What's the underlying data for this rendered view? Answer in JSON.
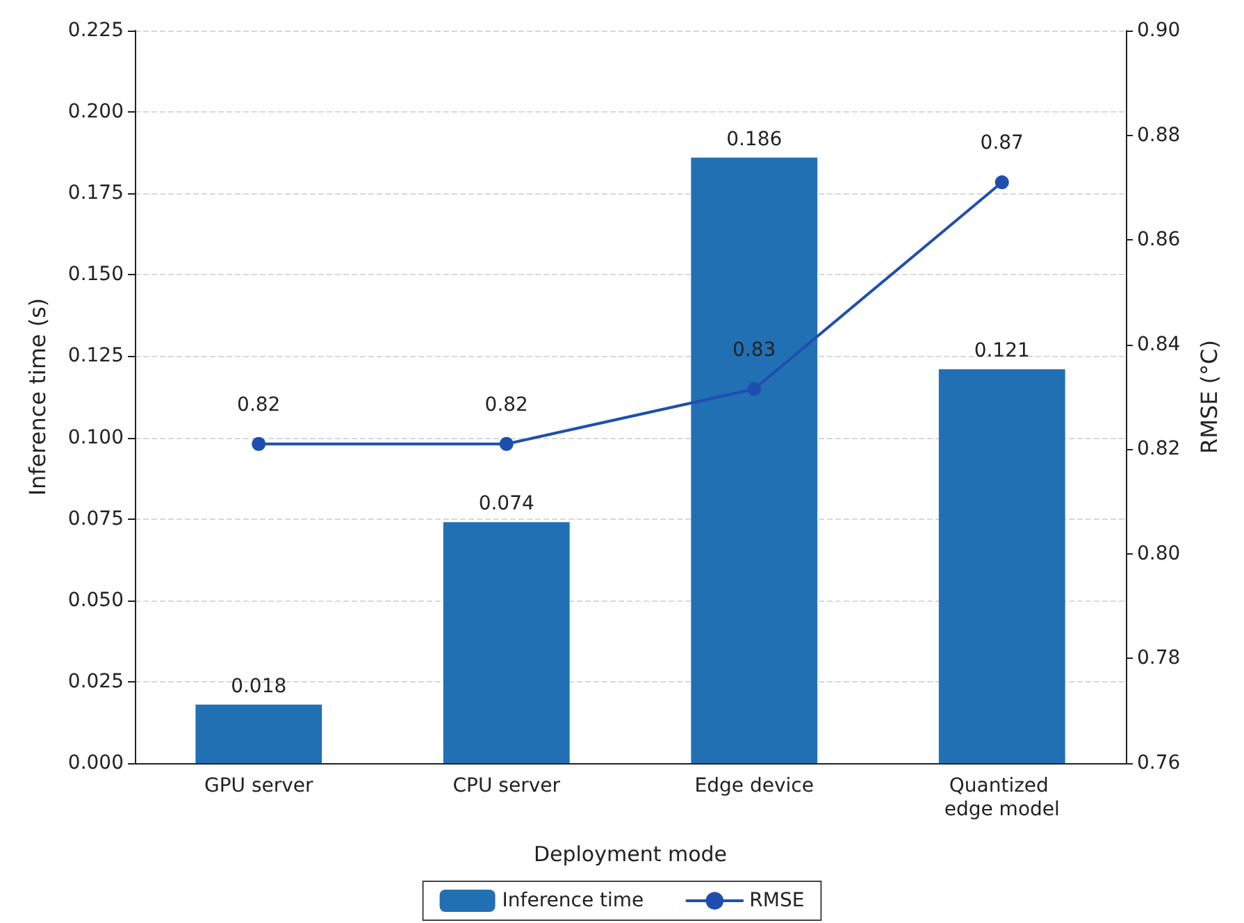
{
  "chart_data": {
    "type": "bar",
    "xlabel": "Deployment mode",
    "ylabel": "Inference time (s)",
    "y2label": "RMSE (°C)",
    "categories": [
      "GPU server",
      "CPU server",
      "Edge device",
      "Quantized edge model"
    ],
    "series": [
      {
        "name": "Inference time",
        "color": "#2270b4",
        "values": [
          0.018,
          0.074,
          0.186,
          0.121
        ],
        "data_labels": true
      },
      {
        "name": "RMSE",
        "type": "line",
        "axis": "y2",
        "color": "#1f4fae",
        "values": [
          0.821,
          0.821,
          0.8315,
          0.871
        ],
        "value_labels": [
          "0.82",
          "0.82",
          "0.83",
          "0.87"
        ],
        "marker": "circle",
        "line_style": "solid"
      }
    ],
    "ylim": [
      0,
      0.225
    ],
    "yticks": [
      {
        "value": 0,
        "label": "0.000"
      },
      {
        "value": 0.025,
        "label": "0.025"
      },
      {
        "value": 0.05,
        "label": "0.050"
      },
      {
        "value": 0.075,
        "label": "0.075"
      },
      {
        "value": 0.1,
        "label": "0.100"
      },
      {
        "value": 0.125,
        "label": "0.125"
      },
      {
        "value": 0.15,
        "label": "0.150"
      },
      {
        "value": 0.175,
        "label": "0.175"
      },
      {
        "value": 0.2,
        "label": "0.200"
      },
      {
        "value": 0.225,
        "label": "0.225"
      }
    ],
    "y2lim": [
      0.76,
      0.9
    ],
    "y2ticks": [
      {
        "value": 0.76,
        "label": "0.76"
      },
      {
        "value": 0.78,
        "label": "0.78"
      },
      {
        "value": 0.8,
        "label": "0.80"
      },
      {
        "value": 0.82,
        "label": "0.82"
      },
      {
        "value": 0.84,
        "label": "0.84"
      },
      {
        "value": 0.86,
        "label": "0.86"
      },
      {
        "value": 0.88,
        "label": "0.88"
      },
      {
        "value": 0.9,
        "label": "0.90"
      }
    ],
    "grid": "y",
    "legend": "bottom"
  }
}
